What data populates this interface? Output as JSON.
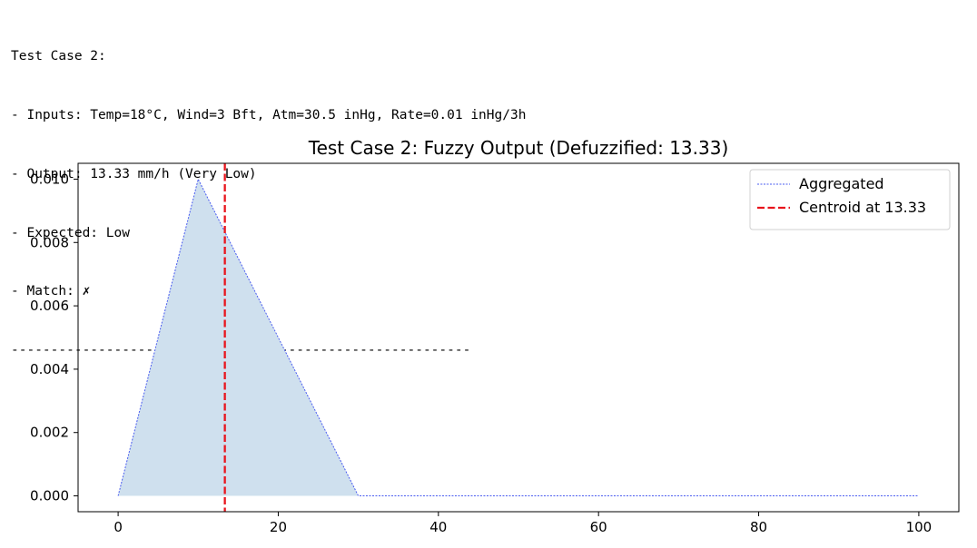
{
  "console": {
    "lines": [
      "Test Case 2:",
      "- Inputs: Temp=18°C, Wind=3 Bft, Atm=30.5 inHg, Rate=0.01 inHg/3h",
      "- Output: 13.33 mm/h (Very Low)",
      "- Expected: Low",
      "- Match: ✗",
      "----------------------------------------------------------"
    ]
  },
  "chart_data": {
    "type": "line",
    "title": "Test Case 2: Fuzzy Output (Defuzzified: 13.33)",
    "xlabel": "",
    "ylabel": "",
    "xlim": [
      -5,
      105
    ],
    "ylim": [
      -0.0005,
      0.0105
    ],
    "x_ticks": [
      0,
      20,
      40,
      60,
      80,
      100
    ],
    "y_ticks": [
      0.0,
      0.002,
      0.004,
      0.006,
      0.008,
      0.01
    ],
    "y_tick_labels": [
      "0.000",
      "0.002",
      "0.004",
      "0.006",
      "0.008",
      "0.010"
    ],
    "grid": false,
    "legend_position": "top-right",
    "series": [
      {
        "name": "Aggregated",
        "style": "dotted",
        "color": "#4a5cf0",
        "fill_color": "#cfe0ee",
        "x": [
          0,
          10,
          30,
          100
        ],
        "y": [
          0,
          0.01,
          0,
          0
        ]
      }
    ],
    "vlines": [
      {
        "name": "Centroid at 13.33",
        "x": 13.33,
        "style": "dashed",
        "color": "#e8141c"
      }
    ]
  }
}
